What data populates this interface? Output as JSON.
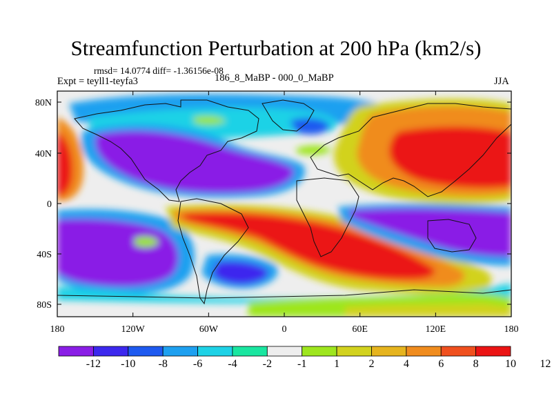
{
  "title": "Streamfunction Perturbation at 200 hPa (km2/s)",
  "stats": "rmsd= 14.0774 diff= -1.36156e-08",
  "experiment": "Expt = teyll1-teyfa3",
  "difference": "186_8_MaBP - 000_0_MaBP",
  "season": "JJA",
  "lat_ticks": [
    "80N",
    "40N",
    "0",
    "40S",
    "80S"
  ],
  "lon_ticks": [
    "180",
    "120W",
    "60W",
    "0",
    "60E",
    "120E",
    "180"
  ],
  "colorbar": {
    "colors": [
      "#8a1ee6",
      "#3c28ee",
      "#1e5af0",
      "#1ea0f0",
      "#1ed2e6",
      "#19e6a0",
      "#eeeeee",
      "#9ee61e",
      "#d2d21e",
      "#e6b41e",
      "#f08c1e",
      "#f0501e",
      "#eb1414"
    ],
    "labels": [
      "-12",
      "-10",
      "-8",
      "-6",
      "-4",
      "-2",
      "-1",
      "1",
      "2",
      "4",
      "6",
      "8",
      "10",
      "12"
    ]
  }
}
